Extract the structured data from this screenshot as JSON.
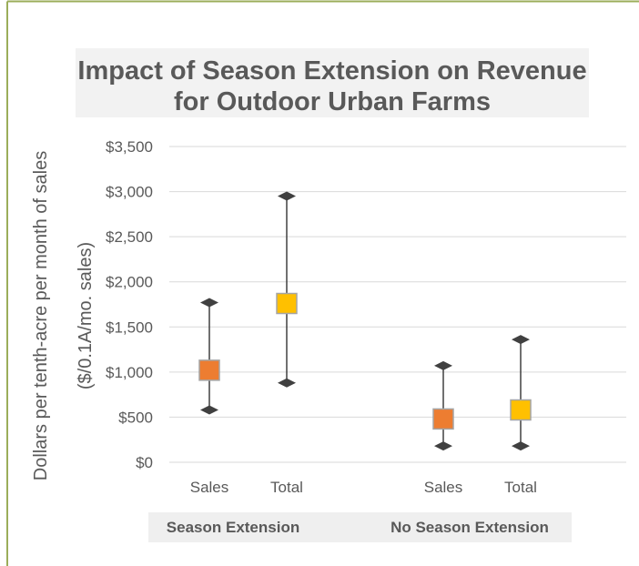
{
  "chart_data": {
    "type": "scatter",
    "title_line1": "Impact of Season Extension on Revenue",
    "title_line2": "for Outdoor Urban Farms",
    "ylabel_line1": "Dollars  per tenth-acre per month of sales",
    "ylabel_line2": "($/0.1A/mo. sales)",
    "xlabel": "",
    "ylim": [
      0,
      3500
    ],
    "y_ticks": [
      "$0",
      "$500",
      "$1,000",
      "$1,500",
      "$2,000",
      "$2,500",
      "$3,000",
      "$3,500"
    ],
    "grid": true,
    "groups": [
      "Season Extension",
      "No Season Extension"
    ],
    "categories": [
      "Sales",
      "Total",
      "Sales",
      "Total"
    ],
    "points": [
      {
        "group": "Season Extension",
        "category": "Sales",
        "value": 1020,
        "min": 580,
        "max": 1770,
        "color": "#ED7D31"
      },
      {
        "group": "Season Extension",
        "category": "Total",
        "value": 1760,
        "min": 880,
        "max": 2950,
        "color": "#FFC000"
      },
      {
        "group": "No Season Extension",
        "category": "Sales",
        "value": 480,
        "min": 180,
        "max": 1070,
        "color": "#ED7D31"
      },
      {
        "group": "No Season Extension",
        "category": "Total",
        "value": 580,
        "min": 180,
        "max": 1360,
        "color": "#FFC000"
      }
    ],
    "colors": {
      "frame": "#9BAD5A",
      "title_bg": "#F2F2F2",
      "group_label_bg": "#EFEFEF",
      "text": "#595959",
      "grid": "#D9D9D9",
      "whisker": "#404040",
      "marker_border": "#A5A5A5"
    }
  }
}
